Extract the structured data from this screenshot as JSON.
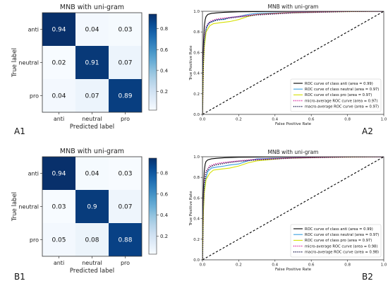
{
  "colors": {
    "cm_low": "#f7fbff",
    "cm_high": "#08306b",
    "roc_anti": "#000000",
    "roc_neutral": "#3aa0e0",
    "roc_pro": "#d6e000",
    "roc_micro": "#d61f9b",
    "roc_macro": "#1a1a4a",
    "chance": "#000000"
  },
  "panel_labels": [
    "A1",
    "A2",
    "B1",
    "B2"
  ],
  "chart_data": [
    {
      "panel": "A1",
      "type": "heatmap",
      "title": "MNB with uni-gram",
      "xlabel": "Predicted label",
      "ylabel": "True label",
      "x_categories": [
        "anti",
        "neutral",
        "pro"
      ],
      "y_categories": [
        "anti",
        "neutral",
        "pro"
      ],
      "values": [
        [
          0.94,
          0.04,
          0.03
        ],
        [
          0.02,
          0.91,
          0.07
        ],
        [
          0.04,
          0.07,
          0.89
        ]
      ],
      "colorbar": {
        "min": 0.02,
        "max": 0.94,
        "ticks": [
          0.2,
          0.4,
          0.6,
          0.8
        ]
      }
    },
    {
      "panel": "A2",
      "type": "line",
      "title": "MNB with uni-gram",
      "xlabel": "False Positive Rate",
      "ylabel": "True Positive Rate",
      "xlim": [
        0,
        1
      ],
      "ylim": [
        0,
        1
      ],
      "xticks": [
        0.0,
        0.2,
        0.4,
        0.6,
        0.8,
        1.0
      ],
      "yticks": [
        0.0,
        0.2,
        0.4,
        0.6,
        0.8,
        1.0
      ],
      "legend_position": "lower-right",
      "series": [
        {
          "name": "ROC curve of class anti (area = 0.99)",
          "color_key": "roc_anti",
          "dash": "solid",
          "x": [
            0,
            0.003,
            0.006,
            0.01,
            0.015,
            0.02,
            0.03,
            0.05,
            0.08,
            0.12,
            0.2,
            0.35,
            0.6,
            1.0
          ],
          "y": [
            0,
            0.55,
            0.72,
            0.85,
            0.92,
            0.95,
            0.97,
            0.98,
            0.985,
            0.99,
            0.995,
            0.998,
            1.0,
            1.0
          ]
        },
        {
          "name": "ROC curve of class neutral (area = 0.97)",
          "color_key": "roc_neutral",
          "dash": "solid",
          "x": [
            0,
            0.005,
            0.01,
            0.02,
            0.03,
            0.05,
            0.08,
            0.12,
            0.15,
            0.2,
            0.25,
            0.3,
            0.5,
            0.8,
            1.0
          ],
          "y": [
            0,
            0.5,
            0.7,
            0.82,
            0.88,
            0.9,
            0.92,
            0.92,
            0.94,
            0.95,
            0.97,
            0.98,
            0.99,
            1.0,
            1.0
          ]
        },
        {
          "name": "ROC curve of class pro (area = 0.97)",
          "color_key": "roc_pro",
          "dash": "solid",
          "x": [
            0,
            0.005,
            0.01,
            0.02,
            0.04,
            0.06,
            0.1,
            0.15,
            0.2,
            0.25,
            0.3,
            0.45,
            0.7,
            1.0
          ],
          "y": [
            0,
            0.45,
            0.65,
            0.8,
            0.86,
            0.88,
            0.89,
            0.9,
            0.92,
            0.95,
            0.97,
            0.985,
            0.995,
            1.0
          ]
        },
        {
          "name": "micro-average ROC curve (area = 0.97)",
          "color_key": "roc_micro",
          "dash": "dotted",
          "x": [
            0,
            0.005,
            0.01,
            0.02,
            0.04,
            0.07,
            0.1,
            0.15,
            0.2,
            0.3,
            0.5,
            0.8,
            1.0
          ],
          "y": [
            0,
            0.55,
            0.75,
            0.85,
            0.9,
            0.92,
            0.93,
            0.94,
            0.95,
            0.97,
            0.99,
            1.0,
            1.0
          ]
        },
        {
          "name": "macro-average ROC curve (area = 0.97)",
          "color_key": "roc_macro",
          "dash": "dotted",
          "x": [
            0,
            0.005,
            0.01,
            0.02,
            0.04,
            0.07,
            0.1,
            0.15,
            0.2,
            0.3,
            0.5,
            0.8,
            1.0
          ],
          "y": [
            0,
            0.5,
            0.72,
            0.84,
            0.89,
            0.91,
            0.92,
            0.935,
            0.945,
            0.965,
            0.985,
            0.998,
            1.0
          ]
        },
        {
          "name": "",
          "color_key": "chance",
          "dash": "dashed",
          "x": [
            0,
            1
          ],
          "y": [
            0,
            1
          ]
        }
      ]
    },
    {
      "panel": "B1",
      "type": "heatmap",
      "title": "MNB with uni-gram",
      "xlabel": "Predicted label",
      "ylabel": "True label",
      "x_categories": [
        "anti",
        "neutral",
        "pro"
      ],
      "y_categories": [
        "anti",
        "neutral",
        "pro"
      ],
      "values": [
        [
          0.94,
          0.04,
          0.03
        ],
        [
          0.03,
          0.9,
          0.07
        ],
        [
          0.05,
          0.08,
          0.88
        ]
      ],
      "colorbar": {
        "min": 0.03,
        "max": 0.94,
        "ticks": [
          0.2,
          0.4,
          0.6,
          0.8
        ]
      }
    },
    {
      "panel": "B2",
      "type": "line",
      "title": "MNB with uni-gram",
      "xlabel": "False Positive Rate",
      "ylabel": "True Positive Rate",
      "xlim": [
        0,
        1
      ],
      "ylim": [
        0,
        1
      ],
      "xticks": [
        0.0,
        0.2,
        0.4,
        0.6,
        0.8,
        1.0
      ],
      "yticks": [
        0.0,
        0.2,
        0.4,
        0.6,
        0.8,
        1.0
      ],
      "legend_position": "lower-right",
      "series": [
        {
          "name": "ROC curve of class anti (area = 0.99)",
          "color_key": "roc_anti",
          "dash": "solid",
          "x": [
            0,
            0.003,
            0.006,
            0.01,
            0.015,
            0.02,
            0.03,
            0.05,
            0.08,
            0.12,
            0.2,
            0.35,
            0.6,
            1.0
          ],
          "y": [
            0,
            0.55,
            0.73,
            0.86,
            0.93,
            0.955,
            0.97,
            0.98,
            0.985,
            0.99,
            0.995,
            0.998,
            1.0,
            1.0
          ]
        },
        {
          "name": "ROC curve of class neutral (area = 0.97)",
          "color_key": "roc_neutral",
          "dash": "solid",
          "x": [
            0,
            0.005,
            0.01,
            0.02,
            0.03,
            0.05,
            0.08,
            0.12,
            0.15,
            0.2,
            0.25,
            0.3,
            0.5,
            0.8,
            1.0
          ],
          "y": [
            0,
            0.5,
            0.7,
            0.8,
            0.86,
            0.89,
            0.9,
            0.91,
            0.92,
            0.93,
            0.96,
            0.98,
            0.99,
            1.0,
            1.0
          ]
        },
        {
          "name": "ROC curve of class pro (area = 0.97)",
          "color_key": "roc_pro",
          "dash": "solid",
          "x": [
            0,
            0.005,
            0.01,
            0.02,
            0.04,
            0.06,
            0.1,
            0.15,
            0.2,
            0.25,
            0.3,
            0.45,
            0.7,
            1.0
          ],
          "y": [
            0,
            0.45,
            0.65,
            0.78,
            0.84,
            0.87,
            0.88,
            0.89,
            0.91,
            0.94,
            0.96,
            0.985,
            0.995,
            1.0
          ]
        },
        {
          "name": "micro-average ROC curve (area = 0.98)",
          "color_key": "roc_micro",
          "dash": "dotted",
          "x": [
            0,
            0.005,
            0.01,
            0.02,
            0.04,
            0.07,
            0.1,
            0.15,
            0.2,
            0.3,
            0.5,
            0.8,
            1.0
          ],
          "y": [
            0,
            0.56,
            0.76,
            0.86,
            0.91,
            0.93,
            0.94,
            0.95,
            0.96,
            0.975,
            0.99,
            1.0,
            1.0
          ]
        },
        {
          "name": "macro-average ROC curve (area = 0.98)",
          "color_key": "roc_macro",
          "dash": "dotted",
          "x": [
            0,
            0.005,
            0.01,
            0.02,
            0.04,
            0.07,
            0.1,
            0.15,
            0.2,
            0.3,
            0.5,
            0.8,
            1.0
          ],
          "y": [
            0,
            0.52,
            0.73,
            0.85,
            0.9,
            0.92,
            0.93,
            0.945,
            0.955,
            0.97,
            0.988,
            0.998,
            1.0
          ]
        },
        {
          "name": "",
          "color_key": "chance",
          "dash": "dashed",
          "x": [
            0,
            1
          ],
          "y": [
            0,
            1
          ]
        }
      ]
    }
  ]
}
